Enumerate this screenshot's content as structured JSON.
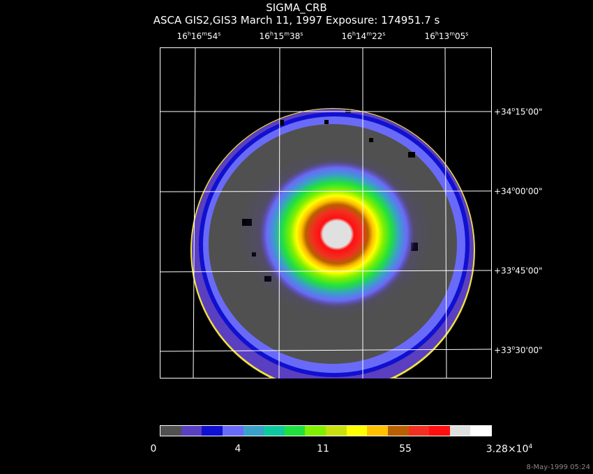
{
  "header": {
    "title": "SIGMA_CRB",
    "subtitle": "ASCA GIS2,GIS3 March 11, 1997 Exposure: 174951.7 s"
  },
  "ra_labels": [
    {
      "h": "16",
      "m": "16",
      "s": "54"
    },
    {
      "h": "16",
      "m": "15",
      "s": "38"
    },
    {
      "h": "16",
      "m": "14",
      "s": "22"
    },
    {
      "h": "16",
      "m": "13",
      "s": "05"
    }
  ],
  "dec_labels": [
    {
      "d": "+34",
      "m": "15",
      "s": "00"
    },
    {
      "d": "+34",
      "m": "00",
      "s": "00"
    },
    {
      "d": "+33",
      "m": "45",
      "s": "00"
    },
    {
      "d": "+33",
      "m": "30",
      "s": "00"
    }
  ],
  "colorbar": {
    "colors": [
      "#505050",
      "#5a3fc0",
      "#1010d0",
      "#6a6af8",
      "#3aa0c8",
      "#10c8a0",
      "#20e040",
      "#80f000",
      "#c8e010",
      "#ffff00",
      "#ffc000",
      "#b86000",
      "#f03020",
      "#ff1010",
      "#e0e0e0",
      "#ffffff"
    ],
    "labels": [
      "0",
      "4",
      "11",
      "55",
      "3.28×10"
    ],
    "max_exponent": "4"
  },
  "timestamp": "8-May-1999 05:24"
}
